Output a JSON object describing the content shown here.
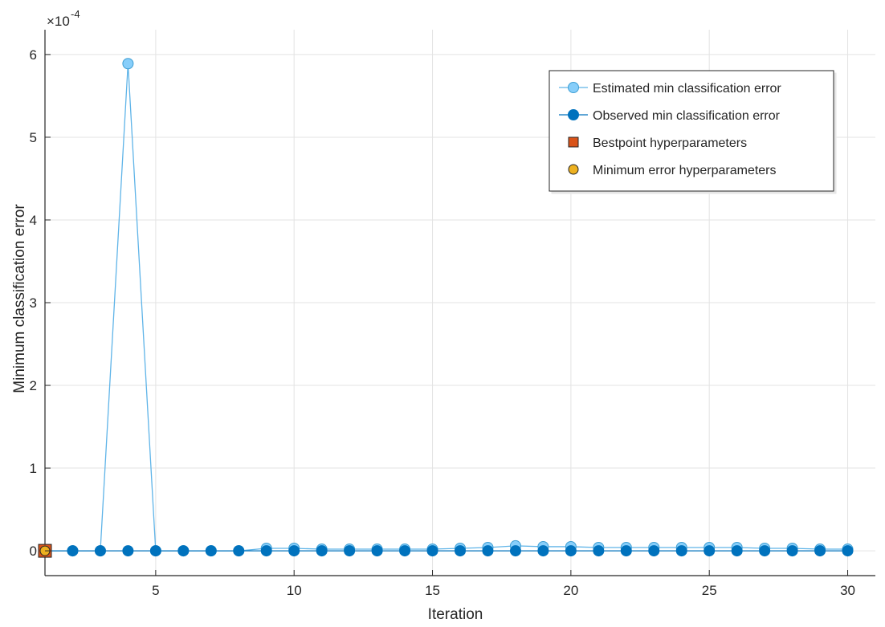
{
  "chart_data": {
    "type": "line",
    "title": "",
    "xlabel": "Iteration",
    "ylabel": "Minimum classification error",
    "y_exponent_label": {
      "base": "×10",
      "exponent": "-4"
    },
    "xlim": [
      1,
      31
    ],
    "ylim": [
      -3e-05,
      0.00063
    ],
    "grid": true,
    "legend_position": "top-right",
    "x_ticks": [
      5,
      10,
      15,
      20,
      25,
      30
    ],
    "x_tick_labels": [
      "5",
      "10",
      "15",
      "20",
      "25",
      "30"
    ],
    "y_ticks": [
      0,
      0.0001,
      0.0002,
      0.0003,
      0.0004,
      0.0005,
      0.0006
    ],
    "y_tick_labels": [
      "0",
      "1",
      "2",
      "3",
      "4",
      "5",
      "6"
    ],
    "series": [
      {
        "name": "Estimated min classification error",
        "color": "#87cefa",
        "edge_color": "#3f9fd4",
        "line_color": "#5fb4e8",
        "x": [
          1,
          2,
          3,
          4,
          5,
          6,
          7,
          8,
          9,
          10,
          11,
          12,
          13,
          14,
          15,
          16,
          17,
          18,
          19,
          20,
          21,
          22,
          23,
          24,
          25,
          26,
          27,
          28,
          29,
          30
        ],
        "values": [
          0,
          0,
          0,
          0.000589,
          0,
          0,
          0,
          0,
          3e-06,
          3e-06,
          2e-06,
          2e-06,
          2e-06,
          2e-06,
          2e-06,
          3e-06,
          4e-06,
          6e-06,
          5e-06,
          5e-06,
          4e-06,
          4e-06,
          4e-06,
          4e-06,
          4e-06,
          4e-06,
          3e-06,
          3e-06,
          2e-06,
          2e-06
        ]
      },
      {
        "name": "Observed min classification error",
        "color": "#0072bd",
        "x": [
          1,
          2,
          3,
          4,
          5,
          6,
          7,
          8,
          9,
          10,
          11,
          12,
          13,
          14,
          15,
          16,
          17,
          18,
          19,
          20,
          21,
          22,
          23,
          24,
          25,
          26,
          27,
          28,
          29,
          30
        ],
        "values": [
          0,
          0,
          0,
          0,
          0,
          0,
          0,
          0,
          0,
          0,
          0,
          0,
          0,
          0,
          0,
          0,
          0,
          0,
          0,
          0,
          0,
          0,
          0,
          0,
          0,
          0,
          0,
          0,
          0,
          0
        ]
      },
      {
        "name": "Bestpoint hyperparameters",
        "color": "#d95319",
        "marker": "square",
        "x": [
          1
        ],
        "values": [
          0
        ]
      },
      {
        "name": "Minimum error hyperparameters",
        "color": "#edb120",
        "marker": "circle",
        "x": [
          1
        ],
        "values": [
          0
        ]
      }
    ]
  }
}
